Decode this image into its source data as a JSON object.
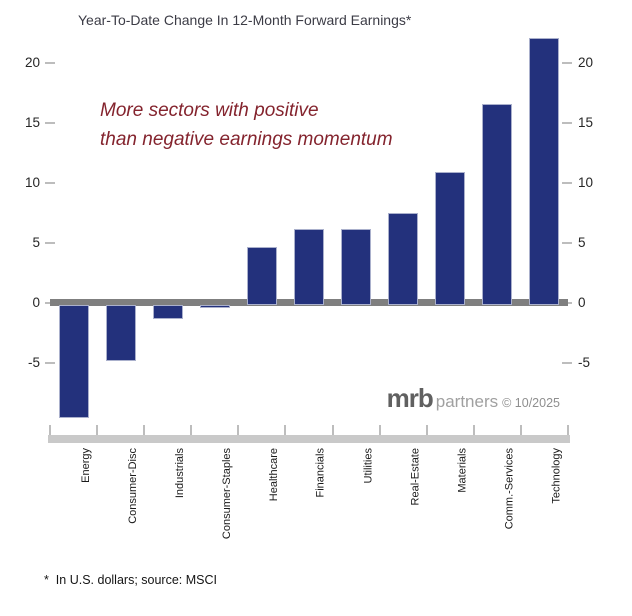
{
  "title": "Year-To-Date Change In 12-Month Forward Earnings*",
  "annotation": {
    "line1": "More sectors with positive",
    "line2": "than negative earnings momentum"
  },
  "branding": {
    "name": "mrb",
    "suffix": "partners",
    "copyright": "© 10/2025"
  },
  "footnote": "*  In U.S. dollars; source: MSCI",
  "colors": {
    "bar": "#23317c",
    "bar_border": "#aab0cc",
    "annotation": "#84242e",
    "zero_line": "#7f7f7f",
    "baseline_strip": "#c9c9c9",
    "tick": "#bdbdbd",
    "axis_text": "#262626",
    "title_text": "#3c3c46"
  },
  "chart_data": {
    "type": "bar",
    "title": "Year-To-Date Change In 12-Month Forward Earnings*",
    "categories": [
      "Energy",
      "Consumer-Disc",
      "Industrials",
      "Consumer-Staples",
      "Healthcare",
      "Financials",
      "Utilities",
      "Real-Estate",
      "Materials",
      "Comm.-Services",
      "Technology"
    ],
    "values": [
      -9.6,
      -4.8,
      -1.3,
      -0.4,
      4.7,
      6.2,
      6.2,
      7.5,
      10.9,
      16.6,
      22.1
    ],
    "xlabel": "",
    "ylabel": "",
    "y_ticks": [
      -5,
      0,
      5,
      10,
      15,
      20
    ],
    "ylim": [
      -11,
      22.4
    ],
    "grid": false,
    "legend_position": "none",
    "axis_label_sides": "both",
    "bar_color": "#23317c"
  }
}
